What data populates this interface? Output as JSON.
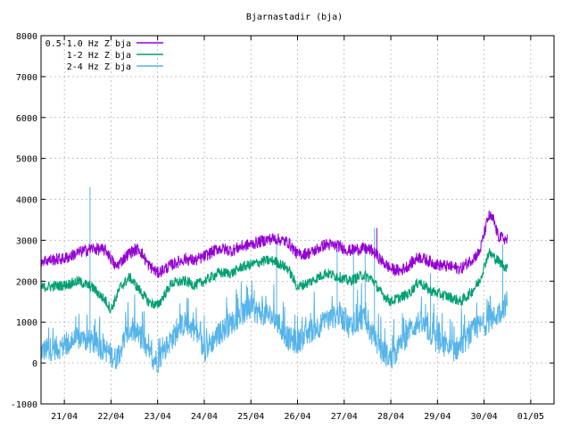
{
  "chart_data": {
    "type": "line",
    "title": "Bjarnastadir (bja)",
    "xlabel": "",
    "ylabel": "",
    "ylim": [
      -1000,
      8000
    ],
    "yticks": [
      -1000,
      0,
      1000,
      2000,
      3000,
      4000,
      5000,
      6000,
      7000,
      8000
    ],
    "xlim_days": [
      20.5,
      31.5
    ],
    "xticks": [
      {
        "day": 21,
        "label": "21/04"
      },
      {
        "day": 22,
        "label": "22/04"
      },
      {
        "day": 23,
        "label": "23/04"
      },
      {
        "day": 24,
        "label": "24/04"
      },
      {
        "day": 25,
        "label": "25/04"
      },
      {
        "day": 26,
        "label": "26/04"
      },
      {
        "day": 27,
        "label": "27/04"
      },
      {
        "day": 28,
        "label": "28/04"
      },
      {
        "day": 29,
        "label": "29/04"
      },
      {
        "day": 30,
        "label": "30/04"
      },
      {
        "day": 31,
        "label": "01/05"
      }
    ],
    "grid": true,
    "legend_position": "top-left",
    "series": [
      {
        "name": "0.5-1.0 Hz Z bja",
        "color": "#9400d3",
        "noise": 150,
        "points": [
          [
            20.5,
            2500
          ],
          [
            21.0,
            2550
          ],
          [
            21.3,
            2700
          ],
          [
            21.6,
            2800
          ],
          [
            21.9,
            2750
          ],
          [
            22.1,
            2350
          ],
          [
            22.4,
            2700
          ],
          [
            22.6,
            2800
          ],
          [
            22.8,
            2400
          ],
          [
            23.0,
            2200
          ],
          [
            23.3,
            2400
          ],
          [
            23.6,
            2550
          ],
          [
            23.8,
            2500
          ],
          [
            24.0,
            2600
          ],
          [
            24.3,
            2800
          ],
          [
            24.6,
            2750
          ],
          [
            24.8,
            2850
          ],
          [
            25.0,
            2900
          ],
          [
            25.3,
            3000
          ],
          [
            25.5,
            3050
          ],
          [
            25.8,
            2950
          ],
          [
            26.0,
            2650
          ],
          [
            26.3,
            2700
          ],
          [
            26.6,
            2900
          ],
          [
            26.9,
            2850
          ],
          [
            27.1,
            2750
          ],
          [
            27.4,
            2800
          ],
          [
            27.6,
            2750
          ],
          [
            27.8,
            2500
          ],
          [
            28.0,
            2300
          ],
          [
            28.2,
            2250
          ],
          [
            28.4,
            2400
          ],
          [
            28.6,
            2600
          ],
          [
            28.8,
            2500
          ],
          [
            29.0,
            2400
          ],
          [
            29.3,
            2350
          ],
          [
            29.5,
            2300
          ],
          [
            29.7,
            2500
          ],
          [
            29.9,
            2700
          ],
          [
            30.1,
            3600
          ],
          [
            30.2,
            3500
          ],
          [
            30.3,
            3100
          ],
          [
            30.5,
            3000
          ]
        ]
      },
      {
        "name": "1-2 Hz Z bja",
        "color": "#009e73",
        "noise": 130,
        "points": [
          [
            20.5,
            1850
          ],
          [
            21.0,
            1900
          ],
          [
            21.3,
            2000
          ],
          [
            21.6,
            1850
          ],
          [
            21.9,
            1500
          ],
          [
            22.0,
            1300
          ],
          [
            22.2,
            1850
          ],
          [
            22.4,
            2100
          ],
          [
            22.6,
            1800
          ],
          [
            22.8,
            1500
          ],
          [
            23.0,
            1400
          ],
          [
            23.3,
            1950
          ],
          [
            23.6,
            2000
          ],
          [
            23.8,
            1900
          ],
          [
            24.0,
            2000
          ],
          [
            24.3,
            2200
          ],
          [
            24.6,
            2200
          ],
          [
            24.8,
            2350
          ],
          [
            25.0,
            2400
          ],
          [
            25.3,
            2500
          ],
          [
            25.5,
            2500
          ],
          [
            25.8,
            2300
          ],
          [
            26.0,
            1850
          ],
          [
            26.3,
            2000
          ],
          [
            26.6,
            2200
          ],
          [
            26.9,
            2100
          ],
          [
            27.1,
            2000
          ],
          [
            27.4,
            2150
          ],
          [
            27.6,
            2050
          ],
          [
            27.8,
            1700
          ],
          [
            28.0,
            1500
          ],
          [
            28.2,
            1600
          ],
          [
            28.4,
            1700
          ],
          [
            28.6,
            2000
          ],
          [
            28.8,
            1800
          ],
          [
            29.0,
            1700
          ],
          [
            29.3,
            1600
          ],
          [
            29.5,
            1500
          ],
          [
            29.7,
            1700
          ],
          [
            29.9,
            2000
          ],
          [
            30.1,
            2700
          ],
          [
            30.3,
            2500
          ],
          [
            30.5,
            2300
          ]
        ]
      },
      {
        "name": "2-4 Hz Z bja",
        "color": "#56b4e9",
        "noise": 300,
        "points": [
          [
            20.5,
            300
          ],
          [
            21.0,
            400
          ],
          [
            21.3,
            600
          ],
          [
            21.6,
            500
          ],
          [
            21.9,
            300
          ],
          [
            22.1,
            100
          ],
          [
            22.4,
            800
          ],
          [
            22.6,
            700
          ],
          [
            22.8,
            200
          ],
          [
            23.0,
            50
          ],
          [
            23.3,
            600
          ],
          [
            23.6,
            1000
          ],
          [
            23.8,
            800
          ],
          [
            24.0,
            300
          ],
          [
            24.3,
            700
          ],
          [
            24.6,
            1000
          ],
          [
            24.8,
            1200
          ],
          [
            25.0,
            1300
          ],
          [
            25.3,
            1200
          ],
          [
            25.5,
            1100
          ],
          [
            25.8,
            600
          ],
          [
            26.0,
            500
          ],
          [
            26.3,
            800
          ],
          [
            26.6,
            1000
          ],
          [
            26.9,
            1200
          ],
          [
            27.1,
            900
          ],
          [
            27.4,
            1100
          ],
          [
            27.6,
            700
          ],
          [
            27.8,
            300
          ],
          [
            28.0,
            100
          ],
          [
            28.2,
            400
          ],
          [
            28.4,
            800
          ],
          [
            28.6,
            1000
          ],
          [
            28.8,
            800
          ],
          [
            29.0,
            500
          ],
          [
            29.3,
            300
          ],
          [
            29.5,
            400
          ],
          [
            29.7,
            700
          ],
          [
            29.9,
            900
          ],
          [
            30.1,
            1000
          ],
          [
            30.3,
            1200
          ],
          [
            30.5,
            1500
          ]
        ]
      }
    ],
    "spikes": [
      {
        "series": "2-4 Hz Z bja",
        "x": 21.55,
        "y": 4300
      },
      {
        "series": "2-4 Hz Z bja",
        "x": 25.55,
        "y": 3050
      },
      {
        "series": "2-4 Hz Z bja",
        "x": 26.85,
        "y": 3000
      },
      {
        "series": "2-4 Hz Z bja",
        "x": 27.2,
        "y": 2800
      },
      {
        "series": "2-4 Hz Z bja",
        "x": 27.45,
        "y": 2900
      },
      {
        "series": "2-4 Hz Z bja",
        "x": 27.65,
        "y": 3300
      },
      {
        "series": "2-4 Hz Z bja",
        "x": 28.85,
        "y": 2200
      },
      {
        "series": "2-4 Hz Z bja",
        "x": 30.4,
        "y": 2900
      },
      {
        "series": "0.5-1.0 Hz Z bja",
        "x": 27.7,
        "y": 3300
      }
    ]
  }
}
